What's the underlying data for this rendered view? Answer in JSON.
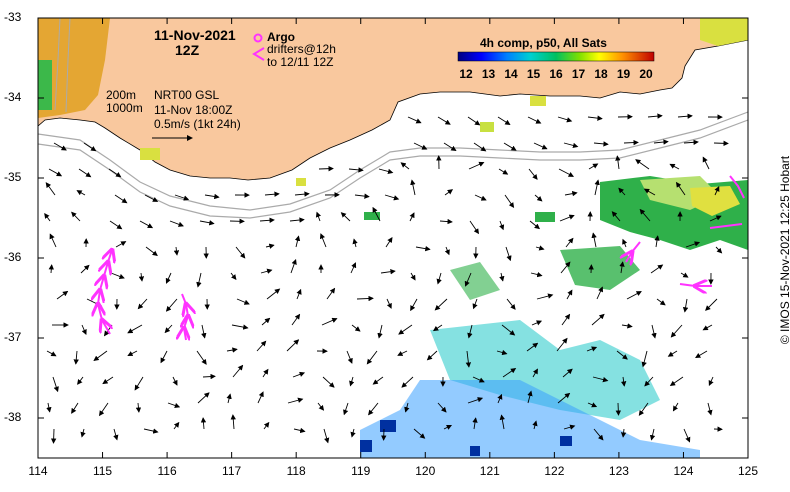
{
  "map": {
    "date": "11-Nov-2021",
    "time": "12Z",
    "legend_argo": "Argo",
    "legend_drifters": "drifters@12h",
    "legend_drifters_to": "to 12/11 12Z",
    "colorbar_title": "4h comp, p50, All Sats",
    "colorbar_ticks": [
      "12",
      "13",
      "14",
      "15",
      "16",
      "17",
      "18",
      "19",
      "20"
    ],
    "isobath_200": "200m",
    "isobath_1000": "1000m",
    "product": "NRT00 GSL",
    "product_time": "11-Nov 18:00Z",
    "scale_label": "0.5m/s (1kt 24h)",
    "credit": "© IMOS 15-Nov-2021 12:25 Hobart",
    "lon_ticks": [
      "114",
      "115",
      "116",
      "117",
      "118",
      "119",
      "120",
      "121",
      "122",
      "123",
      "124",
      "125"
    ],
    "lat_ticks": [
      "-33",
      "-34",
      "-35",
      "-36",
      "-37",
      "-38"
    ],
    "colors": {
      "land": "#f9c89e",
      "drifter": "#ff33ff",
      "arrow": "#000000",
      "isobath": "#aaaaaa"
    }
  }
}
